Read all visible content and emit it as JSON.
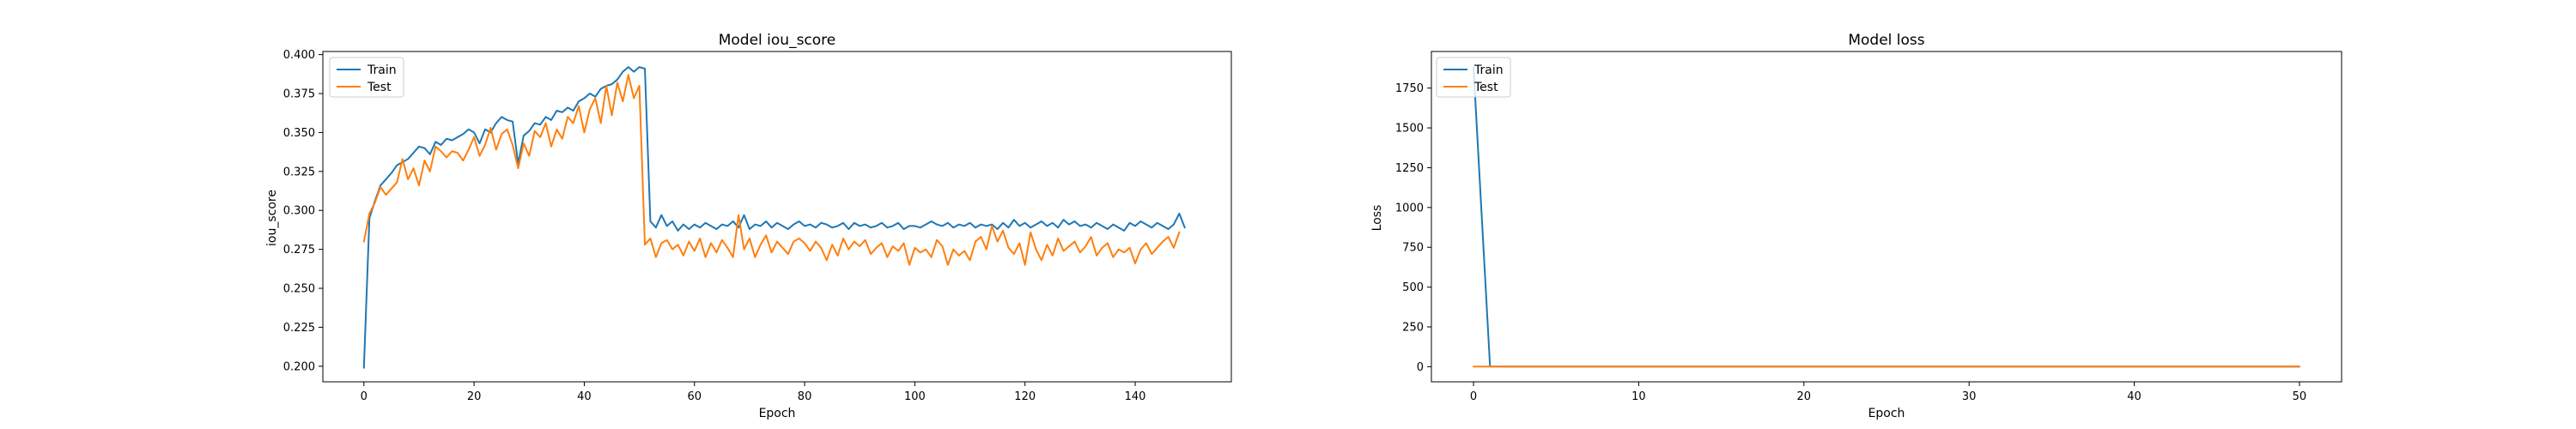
{
  "colors": {
    "train": "#1f77b4",
    "test": "#ff7f0e"
  },
  "chart_data": [
    {
      "type": "line",
      "title": "Model iou_score",
      "xlabel": "Epoch",
      "ylabel": "iou_score",
      "xlim": [
        -7.45,
        157.45
      ],
      "ylim": [
        0.19,
        0.402
      ],
      "xticks": [
        0,
        20,
        40,
        60,
        80,
        100,
        120,
        140
      ],
      "yticks": [
        0.2,
        0.225,
        0.25,
        0.275,
        0.3,
        0.325,
        0.35,
        0.375,
        0.4
      ],
      "ytick_decimals": 3,
      "legend": {
        "position": "upper-left",
        "entries": [
          "Train",
          "Test"
        ]
      },
      "series": [
        {
          "name": "Train",
          "color": "#1f77b4",
          "x_start": 0,
          "values": [
            0.199,
            0.295,
            0.306,
            0.316,
            0.32,
            0.324,
            0.329,
            0.331,
            0.333,
            0.337,
            0.341,
            0.34,
            0.336,
            0.344,
            0.342,
            0.346,
            0.345,
            0.347,
            0.349,
            0.352,
            0.35,
            0.343,
            0.352,
            0.35,
            0.356,
            0.36,
            0.358,
            0.357,
            0.33,
            0.348,
            0.351,
            0.356,
            0.355,
            0.36,
            0.358,
            0.364,
            0.363,
            0.366,
            0.364,
            0.37,
            0.372,
            0.375,
            0.373,
            0.378,
            0.38,
            0.381,
            0.384,
            0.389,
            0.392,
            0.389,
            0.392,
            0.391,
            0.293,
            0.289,
            0.297,
            0.29,
            0.293,
            0.287,
            0.291,
            0.288,
            0.291,
            0.289,
            0.292,
            0.29,
            0.288,
            0.291,
            0.29,
            0.293,
            0.289,
            0.297,
            0.288,
            0.291,
            0.29,
            0.293,
            0.289,
            0.292,
            0.29,
            0.288,
            0.291,
            0.293,
            0.29,
            0.291,
            0.289,
            0.292,
            0.291,
            0.289,
            0.29,
            0.292,
            0.288,
            0.292,
            0.29,
            0.291,
            0.289,
            0.29,
            0.292,
            0.289,
            0.29,
            0.292,
            0.288,
            0.29,
            0.29,
            0.289,
            0.291,
            0.293,
            0.291,
            0.29,
            0.292,
            0.289,
            0.291,
            0.29,
            0.292,
            0.289,
            0.291,
            0.29,
            0.291,
            0.288,
            0.292,
            0.289,
            0.294,
            0.29,
            0.292,
            0.289,
            0.291,
            0.293,
            0.29,
            0.292,
            0.289,
            0.294,
            0.291,
            0.293,
            0.29,
            0.291,
            0.289,
            0.292,
            0.29,
            0.288,
            0.291,
            0.289,
            0.287,
            0.292,
            0.29,
            0.293,
            0.291,
            0.289,
            0.292,
            0.29,
            0.288,
            0.291,
            0.298,
            0.289
          ]
        },
        {
          "name": "Test",
          "color": "#ff7f0e",
          "x_start": 0,
          "values": [
            0.28,
            0.298,
            0.305,
            0.315,
            0.31,
            0.314,
            0.318,
            0.333,
            0.32,
            0.327,
            0.316,
            0.332,
            0.325,
            0.341,
            0.338,
            0.334,
            0.338,
            0.337,
            0.332,
            0.339,
            0.347,
            0.335,
            0.342,
            0.353,
            0.339,
            0.349,
            0.352,
            0.342,
            0.327,
            0.343,
            0.335,
            0.351,
            0.347,
            0.356,
            0.341,
            0.352,
            0.346,
            0.36,
            0.356,
            0.367,
            0.35,
            0.365,
            0.372,
            0.356,
            0.38,
            0.361,
            0.382,
            0.37,
            0.387,
            0.372,
            0.38,
            0.278,
            0.282,
            0.27,
            0.279,
            0.281,
            0.275,
            0.278,
            0.271,
            0.28,
            0.274,
            0.282,
            0.27,
            0.279,
            0.273,
            0.281,
            0.276,
            0.27,
            0.297,
            0.275,
            0.282,
            0.27,
            0.278,
            0.284,
            0.273,
            0.28,
            0.276,
            0.272,
            0.28,
            0.282,
            0.279,
            0.274,
            0.28,
            0.276,
            0.268,
            0.278,
            0.271,
            0.282,
            0.275,
            0.28,
            0.277,
            0.281,
            0.272,
            0.276,
            0.279,
            0.27,
            0.277,
            0.274,
            0.279,
            0.265,
            0.276,
            0.273,
            0.275,
            0.27,
            0.281,
            0.277,
            0.265,
            0.275,
            0.271,
            0.274,
            0.268,
            0.28,
            0.283,
            0.275,
            0.29,
            0.28,
            0.287,
            0.276,
            0.272,
            0.279,
            0.265,
            0.286,
            0.275,
            0.268,
            0.278,
            0.271,
            0.282,
            0.274,
            0.277,
            0.28,
            0.273,
            0.277,
            0.283,
            0.271,
            0.276,
            0.279,
            0.27,
            0.275,
            0.273,
            0.276,
            0.266,
            0.275,
            0.279,
            0.272,
            0.276,
            0.28,
            0.283,
            0.276,
            0.286
          ]
        }
      ]
    },
    {
      "type": "line",
      "title": "Model loss",
      "xlabel": "Epoch",
      "ylabel": "Loss",
      "xlim": [
        -2.55,
        52.55
      ],
      "ylim": [
        -95,
        1980
      ],
      "xticks": [
        0,
        10,
        20,
        30,
        40,
        50
      ],
      "yticks": [
        0,
        250,
        500,
        750,
        1000,
        1250,
        1500,
        1750
      ],
      "ytick_decimals": 0,
      "legend": {
        "position": "upper-left",
        "entries": [
          "Train",
          "Test"
        ]
      },
      "series": [
        {
          "name": "Train",
          "color": "#1f77b4",
          "x_start": 0,
          "values": [
            1880,
            1.2,
            1.0,
            0.9,
            0.8,
            0.8,
            0.7,
            0.7,
            0.7,
            0.7,
            0.7,
            0.7,
            0.7,
            0.7,
            0.7,
            0.7,
            0.7,
            0.7,
            0.7,
            0.7,
            0.7,
            0.7,
            0.7,
            0.7,
            0.7,
            0.7,
            0.7,
            0.7,
            0.7,
            0.7,
            0.7,
            0.7,
            0.7,
            0.7,
            0.7,
            0.7,
            0.7,
            0.7,
            0.7,
            0.7,
            0.7,
            0.7,
            0.7,
            0.7,
            0.7,
            0.7,
            0.7,
            0.7,
            0.7,
            0.7,
            0.7
          ]
        },
        {
          "name": "Test",
          "color": "#ff7f0e",
          "x_start": 0,
          "values": [
            1.0,
            0.9,
            0.8,
            0.8,
            0.8,
            0.8,
            0.8,
            0.8,
            0.8,
            0.8,
            0.8,
            0.8,
            0.8,
            0.8,
            0.8,
            0.8,
            0.8,
            0.8,
            0.8,
            0.8,
            0.8,
            0.8,
            0.8,
            0.8,
            0.8,
            0.8,
            0.8,
            0.8,
            0.8,
            0.8,
            0.8,
            0.8,
            0.8,
            0.8,
            0.8,
            0.8,
            0.8,
            0.8,
            0.8,
            0.8,
            0.8,
            0.8,
            0.8,
            0.8,
            0.8,
            0.8,
            0.8,
            0.8,
            0.8,
            0.8,
            0.8
          ]
        }
      ]
    }
  ]
}
